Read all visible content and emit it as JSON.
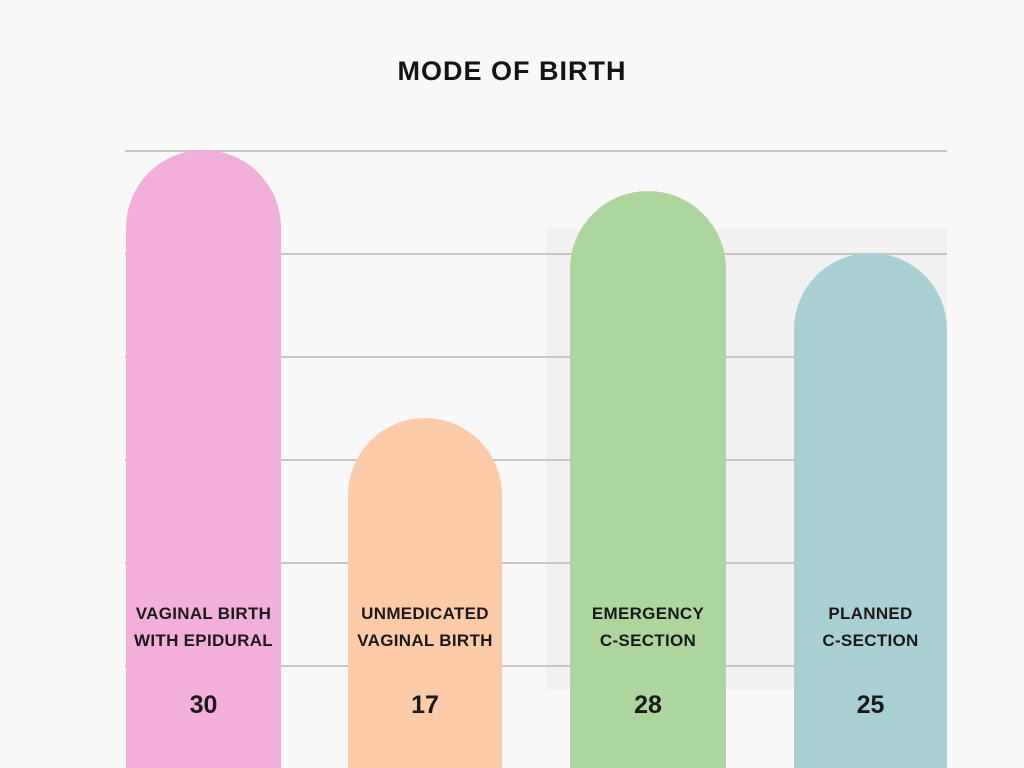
{
  "title": "MODE OF BIRTH",
  "colors": {
    "background": "#F9F8F8",
    "highlight_band": "#F2F1F1",
    "gridline": "#C6C5C4",
    "text": "#141414"
  },
  "chart_data": {
    "type": "bar",
    "title": "MODE OF BIRTH",
    "categories": [
      "VAGINAL BIRTH WITH EPIDURAL",
      "UNMEDICATED VAGINAL BIRTH",
      "EMERGENCY C-SECTION",
      "PLANNED C-SECTION"
    ],
    "category_lines": [
      [
        "VAGINAL BIRTH",
        "WITH EPIDURAL"
      ],
      [
        "UNMEDICATED",
        "VAGINAL BIRTH"
      ],
      [
        "EMERGENCY",
        "C-SECTION"
      ],
      [
        "PLANNED",
        "C-SECTION"
      ]
    ],
    "values": [
      30,
      17,
      28,
      25
    ],
    "bar_colors": [
      "#F3AFDB",
      "#FECBA8",
      "#ADD69C",
      "#A8D0D4"
    ],
    "xlabel": "",
    "ylabel": "",
    "ylim": [
      0,
      30
    ],
    "grid_step": 5,
    "grid": true,
    "legend": false,
    "value_labels_inside_bars": true
  }
}
